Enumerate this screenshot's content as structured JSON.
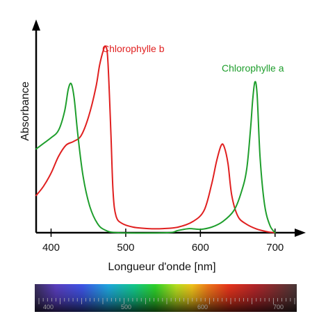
{
  "chart_data": {
    "type": "line",
    "xlabel": "Longueur d'onde [nm]",
    "ylabel": "Absorbance",
    "xlim": [
      380,
      730
    ],
    "ylim": [
      0,
      1
    ],
    "x_ticks": [
      400,
      500,
      600,
      700
    ],
    "series": [
      {
        "name": "Chlorophylle b",
        "color": "#e01f1f",
        "points": [
          [
            380,
            0.2
          ],
          [
            390,
            0.25
          ],
          [
            400,
            0.32
          ],
          [
            410,
            0.41
          ],
          [
            420,
            0.47
          ],
          [
            430,
            0.49
          ],
          [
            440,
            0.52
          ],
          [
            450,
            0.62
          ],
          [
            460,
            0.78
          ],
          [
            465,
            0.9
          ],
          [
            470,
            0.98
          ],
          [
            473,
            1.0
          ],
          [
            476,
            0.93
          ],
          [
            480,
            0.55
          ],
          [
            483,
            0.22
          ],
          [
            487,
            0.09
          ],
          [
            495,
            0.05
          ],
          [
            510,
            0.03
          ],
          [
            530,
            0.022
          ],
          [
            550,
            0.022
          ],
          [
            570,
            0.03
          ],
          [
            590,
            0.06
          ],
          [
            605,
            0.12
          ],
          [
            615,
            0.26
          ],
          [
            622,
            0.39
          ],
          [
            628,
            0.47
          ],
          [
            632,
            0.46
          ],
          [
            637,
            0.37
          ],
          [
            642,
            0.2
          ],
          [
            650,
            0.09
          ],
          [
            660,
            0.05
          ],
          [
            675,
            0.02
          ],
          [
            690,
            0.005
          ],
          [
            700,
            0.0
          ]
        ]
      },
      {
        "name": "Chlorophylle a",
        "color": "#1e9e2c",
        "points": [
          [
            380,
            0.45
          ],
          [
            390,
            0.48
          ],
          [
            400,
            0.51
          ],
          [
            410,
            0.55
          ],
          [
            418,
            0.65
          ],
          [
            423,
            0.77
          ],
          [
            427,
            0.8
          ],
          [
            431,
            0.72
          ],
          [
            436,
            0.52
          ],
          [
            443,
            0.3
          ],
          [
            452,
            0.14
          ],
          [
            462,
            0.05
          ],
          [
            472,
            0.015
          ],
          [
            490,
            0.0
          ],
          [
            555,
            0.0
          ],
          [
            570,
            0.012
          ],
          [
            585,
            0.022
          ],
          [
            600,
            0.018
          ],
          [
            615,
            0.03
          ],
          [
            630,
            0.06
          ],
          [
            645,
            0.12
          ],
          [
            655,
            0.22
          ],
          [
            662,
            0.34
          ],
          [
            667,
            0.55
          ],
          [
            670,
            0.71
          ],
          [
            673,
            0.81
          ],
          [
            676,
            0.74
          ],
          [
            680,
            0.4
          ],
          [
            686,
            0.15
          ],
          [
            693,
            0.04
          ],
          [
            700,
            0.0
          ]
        ]
      }
    ],
    "legend_placement": "inline labels",
    "grid": false
  },
  "spectrum_bar": {
    "tick_labels": [
      "400",
      "500",
      "600",
      "700"
    ]
  }
}
